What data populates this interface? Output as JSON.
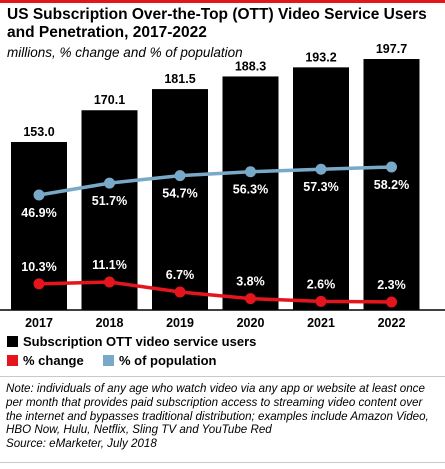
{
  "accent_color": "#E4151C",
  "title": "US Subscription Over-the-Top (OTT) Video Service Users and Penetration, 2017-2022",
  "subtitle": "millions, % change and % of population",
  "legend": [
    {
      "label": "Subscription OTT video service users",
      "color": "#000000"
    },
    {
      "label": "% change",
      "color": "#E4151C"
    },
    {
      "label": "% of population",
      "color": "#79A9C8"
    }
  ],
  "note": "Note: individuals of any age who watch video via any app or website at least once per month that provides paid subscription access to streaming video content over the internet and bypasses traditional distribution; examples include Amazon Video, HBO Now, Hulu, Netflix, Sling TV and YouTube Red",
  "source": "Source: eMarketer, July 2018",
  "chart_data": {
    "type": "bar",
    "categories": [
      "2017",
      "2018",
      "2019",
      "2020",
      "2021",
      "2022"
    ],
    "series": [
      {
        "name": "Subscription OTT video service users",
        "type": "bar",
        "color": "#000000",
        "values": [
          153.0,
          170.1,
          181.5,
          188.3,
          193.2,
          197.7
        ],
        "labels": [
          "153.0",
          "170.1",
          "181.5",
          "188.3",
          "193.2",
          "197.7"
        ]
      },
      {
        "name": "% change",
        "type": "line",
        "color": "#E4151C",
        "values": [
          10.3,
          11.1,
          6.7,
          3.8,
          2.6,
          2.3
        ],
        "labels": [
          "10.3%",
          "11.1%",
          "6.7%",
          "3.8%",
          "2.6%",
          "2.3%"
        ]
      },
      {
        "name": "% of population",
        "type": "line",
        "color": "#79A9C8",
        "values": [
          46.9,
          51.7,
          54.7,
          56.3,
          57.3,
          58.2
        ],
        "labels": [
          "46.9%",
          "51.7%",
          "54.7%",
          "56.3%",
          "57.3%",
          "58.2%"
        ]
      }
    ],
    "legend_position": "bottom",
    "grid": false
  }
}
